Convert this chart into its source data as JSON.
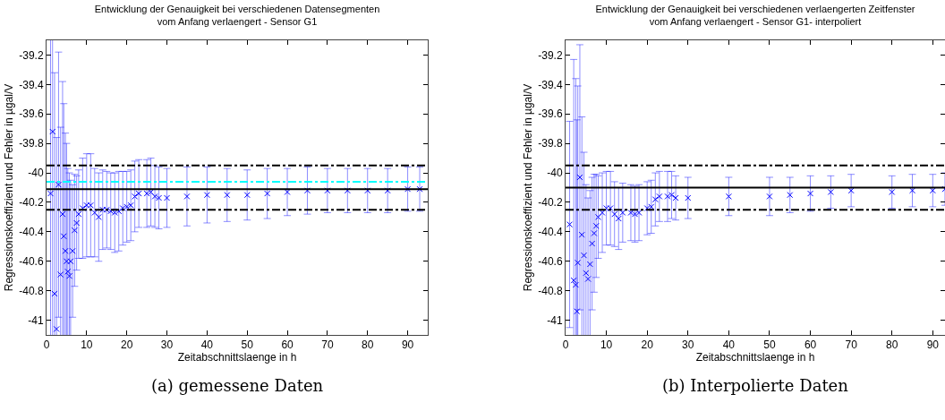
{
  "chart_data": [
    {
      "type": "scatter",
      "title": "Entwicklung der Genauigkeit bei verschiedenen Datensegmenten\nvom Anfang verlaengert - Sensor G1",
      "xlabel": "Zeitabschnittslaenge in h",
      "ylabel": "Regressionskoeffizient und Fehler in µgal/V",
      "marker": "cross",
      "grid": false,
      "xlim": [
        0,
        95
      ],
      "xticks": [
        0,
        10,
        20,
        30,
        40,
        50,
        60,
        70,
        80,
        90
      ],
      "ylim": [
        -41.1,
        -39.1
      ],
      "yticks": [
        -41,
        -40.8,
        -40.6,
        -40.4,
        -40.2,
        -40,
        -39.8,
        -39.6,
        -39.4,
        -39.2
      ],
      "series": [
        {
          "color": "#0000ff",
          "x": [
            1,
            1.5,
            2,
            2.5,
            3,
            3.5,
            4,
            4.3,
            4.7,
            5,
            5.3,
            5.7,
            6,
            6.5,
            7,
            7.5,
            8,
            9,
            10,
            11,
            12,
            13,
            14,
            15,
            16,
            17,
            18,
            19,
            20,
            21,
            22,
            23,
            25,
            26,
            27,
            28,
            30,
            35,
            40,
            45,
            50,
            55,
            60,
            65,
            70,
            75,
            80,
            85,
            90,
            93
          ],
          "values": [
            -40.14,
            -39.72,
            -40.82,
            -41.06,
            -40.08,
            -40.69,
            -40.28,
            -40.43,
            -40.53,
            -40.6,
            -40.67,
            -40.7,
            -40.6,
            -40.53,
            -40.39,
            -40.34,
            -40.28,
            -40.24,
            -40.22,
            -40.22,
            -40.27,
            -40.3,
            -40.25,
            -40.25,
            -40.26,
            -40.27,
            -40.26,
            -40.24,
            -40.23,
            -40.22,
            -40.16,
            -40.14,
            -40.14,
            -40.13,
            -40.16,
            -40.17,
            -40.17,
            -40.16,
            -40.15,
            -40.15,
            -40.15,
            -40.14,
            -40.13,
            -40.12,
            -40.12,
            -40.12,
            -40.12,
            -40.12,
            -40.11,
            -40.11
          ],
          "errors": [
            2,
            1.8,
            1.5,
            1.3,
            0.9,
            1,
            0.9,
            0.9,
            0.8,
            0.8,
            0.7,
            0.7,
            0.55,
            0.45,
            0.38,
            0.32,
            0.3,
            0.34,
            0.35,
            0.35,
            0.3,
            0.3,
            0.27,
            0.26,
            0.26,
            0.27,
            0.27,
            0.25,
            0.24,
            0.24,
            0.24,
            0.23,
            0.23,
            0.23,
            0.21,
            0.21,
            0.2,
            0.2,
            0.19,
            0.18,
            0.17,
            0.17,
            0.16,
            0.16,
            0.15,
            0.15,
            0.15,
            0.15,
            0.15,
            0.15
          ]
        }
      ],
      "ref_lines": [
        {
          "axis": "y",
          "value": -39.95,
          "color": "#000000",
          "line_style": "dashed"
        },
        {
          "axis": "y",
          "value": -40.25,
          "color": "#000000",
          "line_style": "dashed"
        },
        {
          "axis": "y",
          "value": -40.11,
          "color": "#000000",
          "line_style": "solid"
        },
        {
          "axis": "y",
          "value": -40.06,
          "color": "#00ffff",
          "line_style": "dashed"
        }
      ],
      "annotations": [
        "(a) gemessene Daten"
      ]
    },
    {
      "type": "scatter",
      "title": "Entwicklung der Genauigkeit bei verschiedenen verlaengerten Zeitfenster\nvom Anfang verlaengert - Sensor G1- interpoliert",
      "xlabel": "Zeitabschnittslaenge in h",
      "ylabel": "Regressionskoeffizient und Fehler in µgal/V",
      "marker": "cross",
      "grid": false,
      "xlim": [
        0,
        93
      ],
      "xticks": [
        0,
        10,
        20,
        30,
        40,
        50,
        60,
        70,
        80,
        90
      ],
      "ylim": [
        -41.1,
        -39.1
      ],
      "yticks": [
        -41,
        -40.8,
        -40.6,
        -40.4,
        -40.2,
        -40,
        -39.8,
        -39.6,
        -39.4,
        -39.2
      ],
      "series": [
        {
          "color": "#0000ff",
          "x": [
            1,
            2,
            2.5,
            2.8,
            3,
            3.5,
            4,
            4.5,
            5,
            5.5,
            6,
            6.5,
            7,
            7.5,
            8,
            9,
            10,
            11,
            12,
            13,
            14,
            16,
            17,
            18,
            20,
            21,
            22,
            23,
            25,
            26,
            27,
            30,
            40,
            50,
            55,
            60,
            65,
            70,
            80,
            85,
            90,
            93
          ],
          "values": [
            -40.35,
            -40.73,
            -40.76,
            -40.94,
            -40.61,
            -40.03,
            -40.42,
            -40.56,
            -40.68,
            -40.72,
            -40.62,
            -40.48,
            -40.41,
            -40.36,
            -40.3,
            -40.27,
            -40.24,
            -40.24,
            -40.28,
            -40.31,
            -40.27,
            -40.27,
            -40.28,
            -40.27,
            -40.24,
            -40.23,
            -40.18,
            -40.16,
            -40.16,
            -40.15,
            -40.17,
            -40.17,
            -40.16,
            -40.16,
            -40.15,
            -40.14,
            -40.13,
            -40.12,
            -40.13,
            -40.12,
            -40.12,
            -40.11
          ],
          "errors": [
            0.7,
            1.5,
            1.4,
            1.3,
            1.2,
            0.9,
            0.8,
            0.7,
            0.6,
            0.55,
            0.5,
            0.45,
            0.4,
            0.35,
            0.28,
            0.27,
            0.25,
            0.25,
            0.22,
            0.21,
            0.2,
            0.19,
            0.19,
            0.19,
            0.18,
            0.18,
            0.18,
            0.17,
            0.17,
            0.16,
            0.15,
            0.14,
            0.13,
            0.13,
            0.12,
            0.12,
            0.11,
            0.11,
            0.11,
            0.11,
            0.11,
            0.11
          ]
        }
      ],
      "ref_lines": [
        {
          "axis": "y",
          "value": -39.95,
          "color": "#000000",
          "line_style": "dashed"
        },
        {
          "axis": "y",
          "value": -40.25,
          "color": "#000000",
          "line_style": "dashed"
        },
        {
          "axis": "y",
          "value": -40.1,
          "color": "#000000",
          "line_style": "solid"
        }
      ],
      "annotations": [
        "(b) Interpolierte Daten"
      ]
    }
  ]
}
